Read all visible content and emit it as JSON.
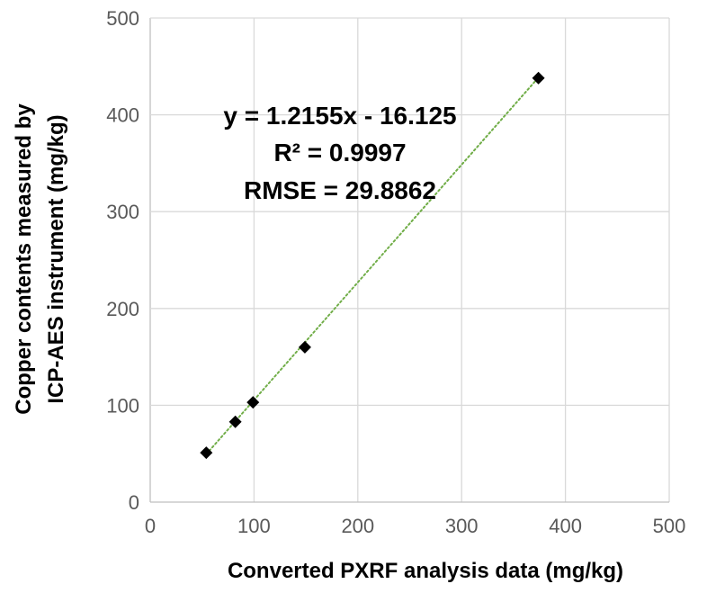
{
  "chart_data": {
    "type": "scatter",
    "xlabel": "Converted PXRF analysis data (mg/kg)",
    "ylabel_lines": [
      "Copper contents measured by",
      "ICP-AES instrument (mg/kg)"
    ],
    "xlim": [
      0,
      500
    ],
    "ylim": [
      0,
      500
    ],
    "xticks": [
      "0",
      "100",
      "200",
      "300",
      "400",
      "500"
    ],
    "yticks": [
      "0",
      "100",
      "200",
      "300",
      "400",
      "500"
    ],
    "grid": true,
    "legend": "none",
    "series": [
      {
        "points": [
          {
            "x": 54,
            "y": 51
          },
          {
            "x": 82,
            "y": 83
          },
          {
            "x": 99,
            "y": 103
          },
          {
            "x": 149,
            "y": 160
          },
          {
            "x": 374,
            "y": 438
          }
        ],
        "marker": "diamond",
        "color": "#000000"
      }
    ],
    "trendline": {
      "kind": "linear",
      "slope": 1.2155,
      "intercept": -16.125,
      "x_range": [
        54,
        374
      ],
      "style": "dotted",
      "color": "#70ad47"
    },
    "annotations": [
      "y = 1.2155x - 16.125",
      "R² = 0.9997",
      "RMSE = 29.8862"
    ],
    "colors": {
      "grid": "#d9d9d9",
      "axis": "#bfbfbf",
      "tick_text": "#595959",
      "marker": "#000000"
    }
  }
}
